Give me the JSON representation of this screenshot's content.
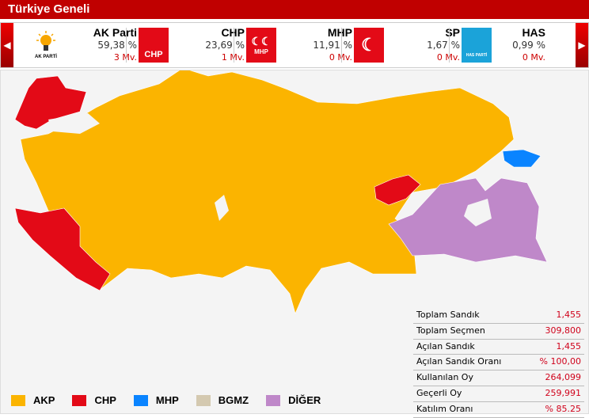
{
  "header": {
    "title": "Türkiye Geneli"
  },
  "parties": [
    {
      "name": "AK Parti",
      "percent": "59,38 %",
      "seats": "3 Mv.",
      "logo_text": "AK PARTİ",
      "color": "#f7a600",
      "icon": "bulb-icon"
    },
    {
      "name": "CHP",
      "percent": "23,69 %",
      "seats": "1 Mv.",
      "logo_text": "CHP",
      "color": "#e30a17",
      "icon": "six-arrows-icon"
    },
    {
      "name": "MHP",
      "percent": "11,91 %",
      "seats": "0 Mv.",
      "logo_text": "MHP",
      "color": "#e30a17",
      "icon": "three-crescents-icon"
    },
    {
      "name": "SP",
      "percent": "1,67 %",
      "seats": "0 Mv.",
      "logo_text": "",
      "color": "#e30a17",
      "icon": "crescent-stars-icon"
    },
    {
      "name": "HAS",
      "percent": "0,99 %",
      "seats": "0 Mv.",
      "logo_text": "HAS PARTİ",
      "color": "#1ba3d9",
      "icon": "sunrise-icon"
    }
  ],
  "stats": [
    {
      "label": "Toplam Sandık",
      "value": "1,455"
    },
    {
      "label": "Toplam Seçmen",
      "value": "309,800"
    },
    {
      "label": "Açılan Sandık",
      "value": "1,455"
    },
    {
      "label": "Açılan Sandık Oranı",
      "value": "% 100,00"
    },
    {
      "label": "Kullanılan Oy",
      "value": "264,099"
    },
    {
      "label": "Geçerli Oy",
      "value": "259,991"
    },
    {
      "label": "Katılım Oranı",
      "value": "% 85.25"
    }
  ],
  "legend": [
    {
      "label": "AKP",
      "color": "#fbb400"
    },
    {
      "label": "CHP",
      "color": "#e30a17"
    },
    {
      "label": "MHP",
      "color": "#0a84ff"
    },
    {
      "label": "BGMZ",
      "color": "#d4c9b0"
    },
    {
      "label": "DİĞER",
      "color": "#bf88c9"
    }
  ]
}
